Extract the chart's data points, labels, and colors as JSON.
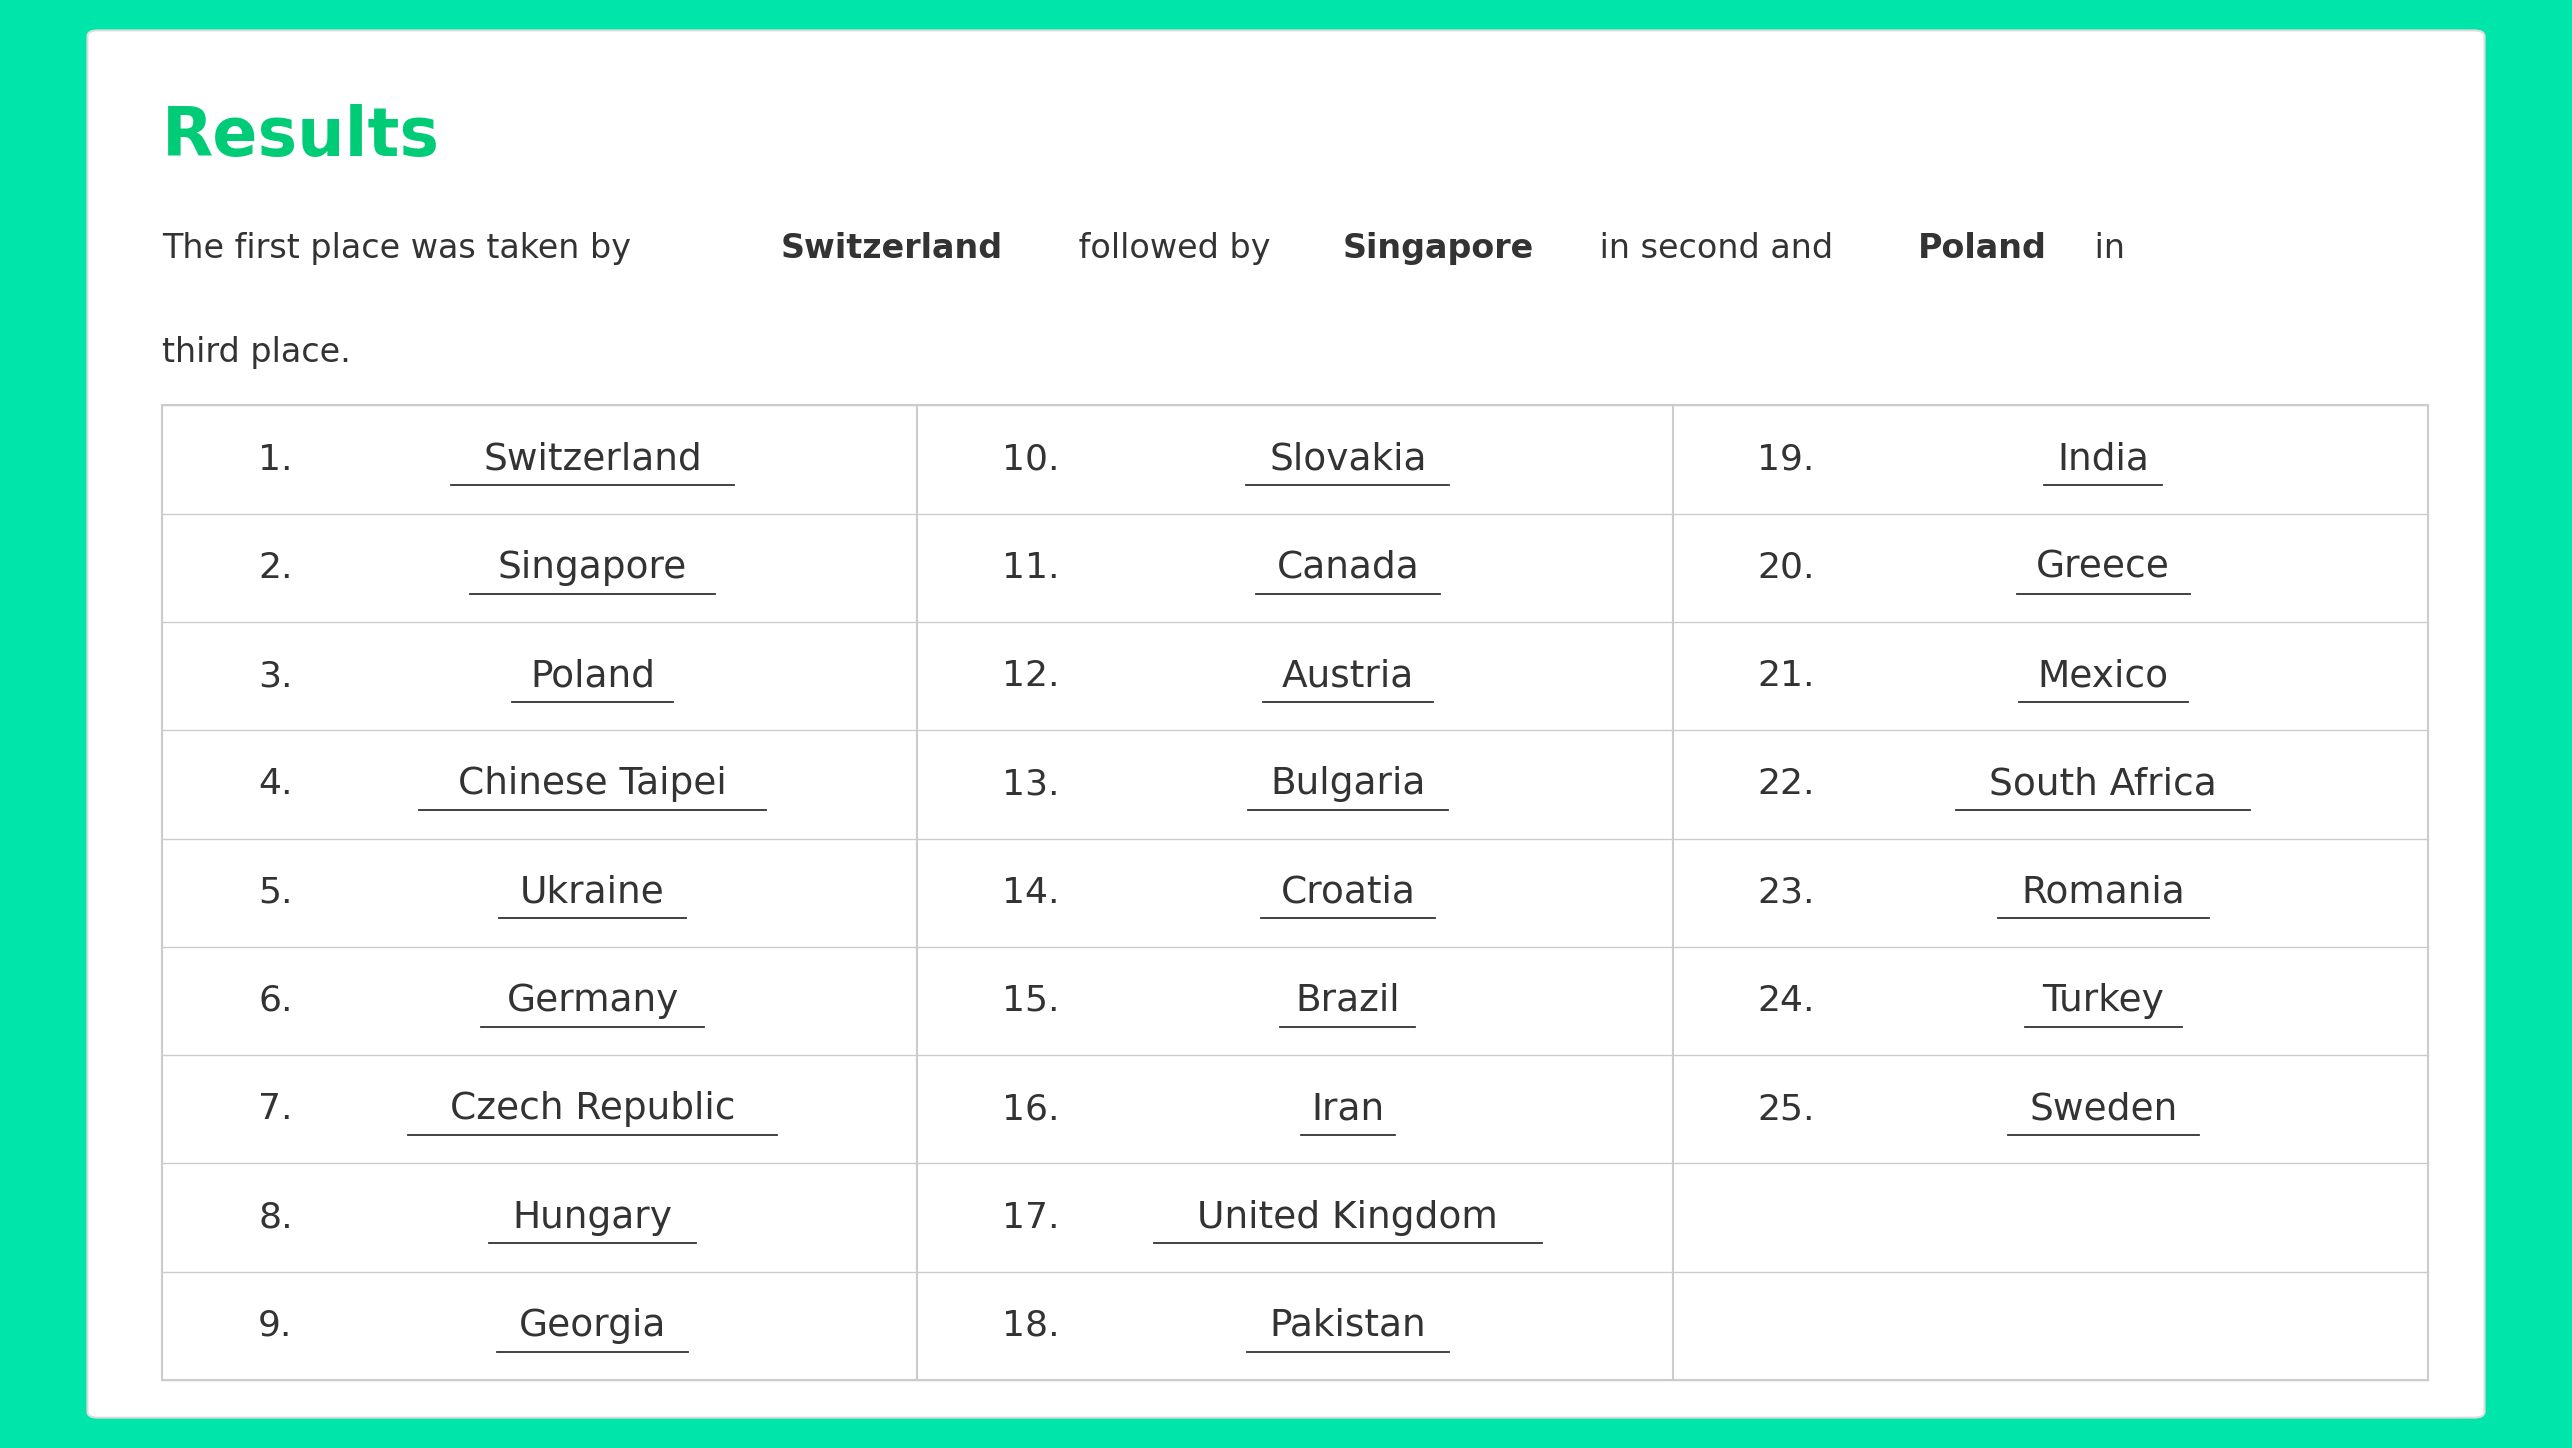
{
  "title": "Results",
  "title_color": "#00cc77",
  "background_color": "#00e5aa",
  "panel_color": "#ffffff",
  "border_color": "#cccccc",
  "text_color": "#333333",
  "link_color": "#333333",
  "subtitle_line1": [
    [
      "The first place was taken by ",
      false
    ],
    [
      "Switzerland",
      true
    ],
    [
      " followed by ",
      false
    ],
    [
      "Singapore",
      true
    ],
    [
      " in second and ",
      false
    ],
    [
      "Poland",
      true
    ],
    [
      " in",
      false
    ]
  ],
  "subtitle_line2": [
    [
      "third place.",
      false
    ]
  ],
  "rankings": [
    [
      1,
      "Switzerland"
    ],
    [
      2,
      "Singapore"
    ],
    [
      3,
      "Poland"
    ],
    [
      4,
      "Chinese Taipei"
    ],
    [
      5,
      "Ukraine"
    ],
    [
      6,
      "Germany"
    ],
    [
      7,
      "Czech Republic"
    ],
    [
      8,
      "Hungary"
    ],
    [
      9,
      "Georgia"
    ],
    [
      10,
      "Slovakia"
    ],
    [
      11,
      "Canada"
    ],
    [
      12,
      "Austria"
    ],
    [
      13,
      "Bulgaria"
    ],
    [
      14,
      "Croatia"
    ],
    [
      15,
      "Brazil"
    ],
    [
      16,
      "Iran"
    ],
    [
      17,
      "United Kingdom"
    ],
    [
      18,
      "Pakistan"
    ],
    [
      19,
      "India"
    ],
    [
      20,
      "Greece"
    ],
    [
      21,
      "Mexico"
    ],
    [
      22,
      "South Africa"
    ],
    [
      23,
      "Romania"
    ],
    [
      24,
      "Turkey"
    ],
    [
      25,
      "Sweden"
    ]
  ],
  "col1_ranks": [
    1,
    2,
    3,
    4,
    5,
    6,
    7,
    8,
    9
  ],
  "col2_ranks": [
    10,
    11,
    12,
    13,
    14,
    15,
    16,
    17,
    18
  ],
  "col3_ranks": [
    19,
    20,
    21,
    22,
    23,
    24,
    25
  ],
  "figsize": [
    25.72,
    14.48
  ],
  "dpi": 100,
  "title_fontsize": 48,
  "subtitle_fontsize": 24,
  "rank_fontsize": 26,
  "country_fontsize": 27
}
